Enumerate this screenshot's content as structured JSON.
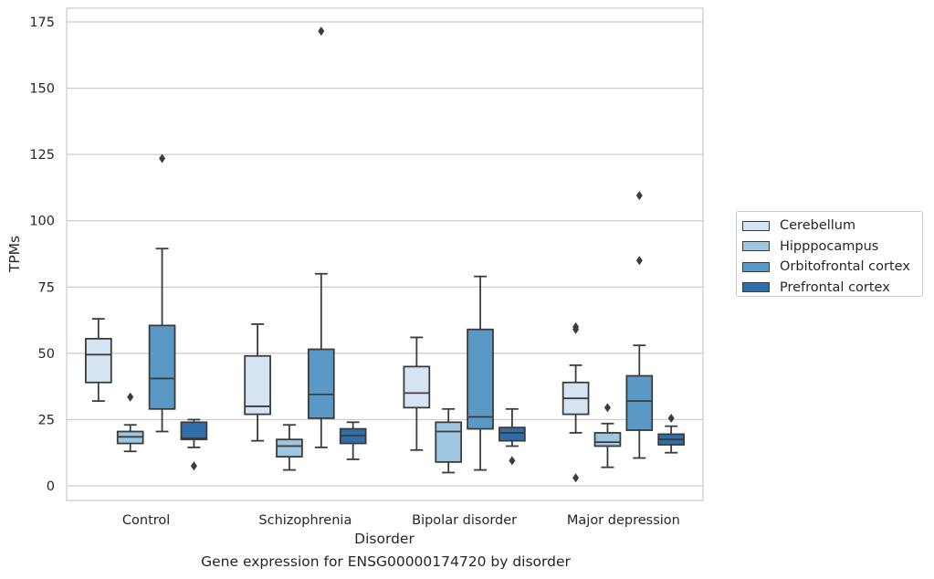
{
  "chart_data": {
    "type": "box",
    "xlabel": "Disorder",
    "ylabel": "TPMs",
    "caption": "Gene expression for ENSG00000174720 by disorder",
    "ylim": [
      -5,
      180
    ],
    "yticks": [
      0,
      25,
      50,
      75,
      100,
      125,
      150,
      175
    ],
    "grid": "horizontal",
    "legend_position": "right",
    "categories": [
      "Control",
      "Schizophrenia",
      "Bipolar disorder",
      "Major depression"
    ],
    "series": [
      {
        "name": "Cerebellum",
        "color": "#d4e4f3",
        "boxes": [
          {
            "whislo": 32,
            "q1": 39,
            "med": 49.5,
            "q3": 55.5,
            "whishi": 63,
            "fliers": []
          },
          {
            "whislo": 17,
            "q1": 27,
            "med": 30,
            "q3": 49,
            "whishi": 61,
            "fliers": []
          },
          {
            "whislo": 13.5,
            "q1": 29.5,
            "med": 35,
            "q3": 45,
            "whishi": 56,
            "fliers": []
          },
          {
            "whislo": 20,
            "q1": 27,
            "med": 33,
            "q3": 39,
            "whishi": 45.5,
            "fliers": [
              60,
              59,
              3
            ]
          }
        ]
      },
      {
        "name": "Hipppocampus",
        "color": "#9ec6e0",
        "boxes": [
          {
            "whislo": 13,
            "q1": 16,
            "med": 18.5,
            "q3": 20.5,
            "whishi": 23,
            "fliers": [
              33.5
            ]
          },
          {
            "whislo": 6,
            "q1": 11,
            "med": 15,
            "q3": 17.5,
            "whishi": 23,
            "fliers": []
          },
          {
            "whislo": 5,
            "q1": 9,
            "med": 20.5,
            "q3": 24,
            "whishi": 29,
            "fliers": []
          },
          {
            "whislo": 7,
            "q1": 15,
            "med": 16.5,
            "q3": 20,
            "whishi": 23.5,
            "fliers": [
              29.5
            ]
          }
        ]
      },
      {
        "name": "Orbitofrontal cortex",
        "color": "#5a98c6",
        "boxes": [
          {
            "whislo": 20.5,
            "q1": 29,
            "med": 40.5,
            "q3": 60.5,
            "whishi": 89.5,
            "fliers": [
              123.5
            ]
          },
          {
            "whislo": 14.5,
            "q1": 25.5,
            "med": 34.5,
            "q3": 51.5,
            "whishi": 80,
            "fliers": [
              171.5
            ]
          },
          {
            "whislo": 6,
            "q1": 21.5,
            "med": 26,
            "q3": 59,
            "whishi": 79,
            "fliers": []
          },
          {
            "whislo": 10.5,
            "q1": 21,
            "med": 32,
            "q3": 41.5,
            "whishi": 53,
            "fliers": [
              109.5,
              85
            ]
          }
        ]
      },
      {
        "name": "Prefrontal cortex",
        "color": "#2f6ea9",
        "boxes": [
          {
            "whislo": 14.5,
            "q1": 17.5,
            "med": 18,
            "q3": 24,
            "whishi": 25,
            "fliers": [
              7.5
            ]
          },
          {
            "whislo": 10,
            "q1": 16,
            "med": 19,
            "q3": 21.5,
            "whishi": 24,
            "fliers": []
          },
          {
            "whislo": 15,
            "q1": 17,
            "med": 20,
            "q3": 22,
            "whishi": 29,
            "fliers": [
              9.5
            ]
          },
          {
            "whislo": 12.5,
            "q1": 15.5,
            "med": 17.5,
            "q3": 19.5,
            "whishi": 22.5,
            "fliers": [
              25.5
            ]
          }
        ]
      }
    ]
  }
}
